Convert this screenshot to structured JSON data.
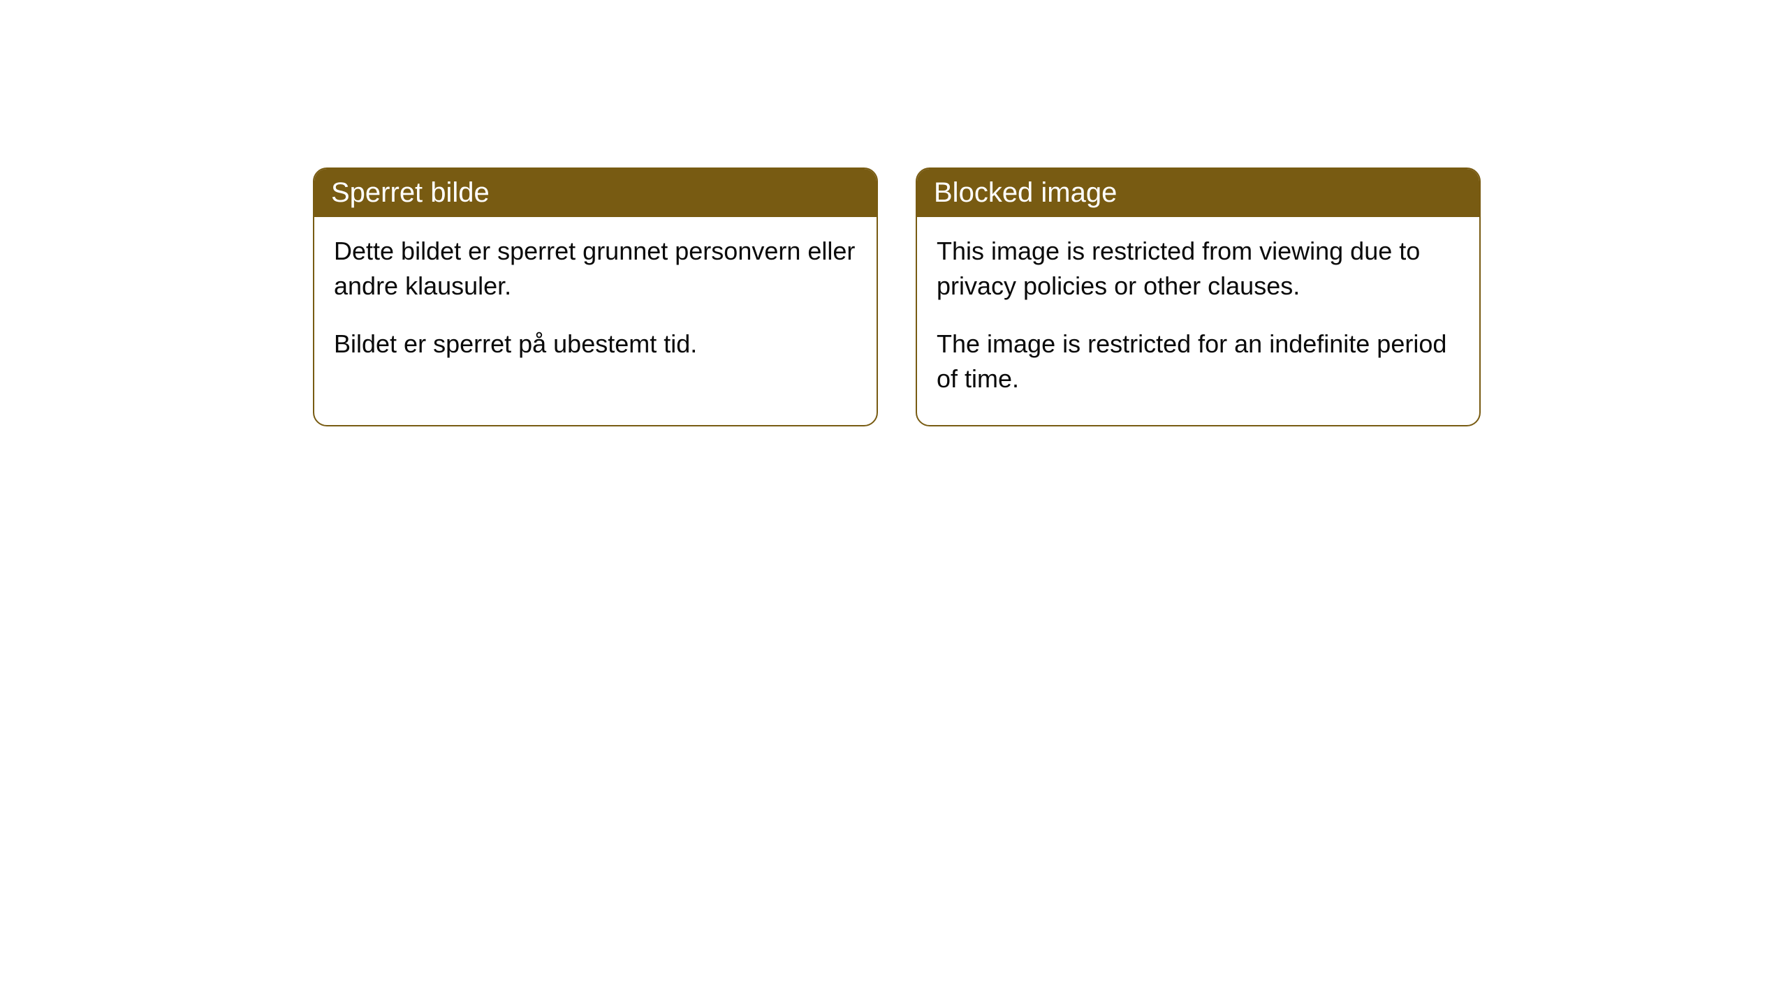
{
  "cards": [
    {
      "title": "Sperret bilde",
      "paragraph1": "Dette bildet er sperret grunnet personvern eller andre klausuler.",
      "paragraph2": "Bildet er sperret på ubestemt tid."
    },
    {
      "title": "Blocked image",
      "paragraph1": "This image is restricted from viewing due to privacy policies or other clauses.",
      "paragraph2": "The image is restricted for an indefinite period of time."
    }
  ],
  "styling": {
    "header_background": "#785b12",
    "header_text_color": "#ffffff",
    "border_color": "#785b12",
    "body_text_color": "#0a0a0a",
    "background_color": "#ffffff",
    "border_radius": 20,
    "title_fontsize": 40,
    "body_fontsize": 36
  }
}
